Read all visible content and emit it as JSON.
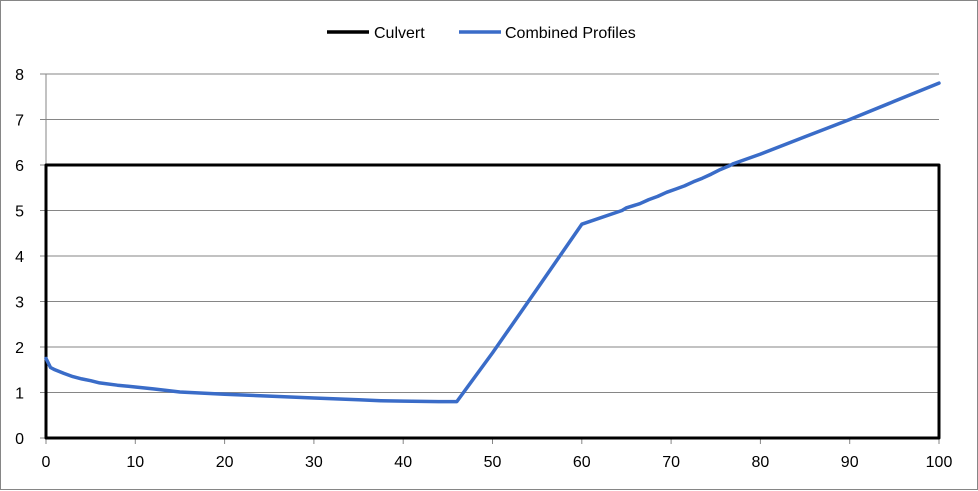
{
  "chart_data": {
    "type": "line",
    "title": "",
    "xlabel": "",
    "ylabel": "",
    "xlim": [
      0,
      100
    ],
    "ylim": [
      0,
      8
    ],
    "x_ticks": [
      "0",
      "10",
      "20",
      "30",
      "40",
      "50",
      "60",
      "70",
      "80",
      "90",
      "100"
    ],
    "y_ticks": [
      "0",
      "1",
      "2",
      "3",
      "4",
      "5",
      "6",
      "7",
      "8"
    ],
    "grid": "horizontal",
    "legend_position": "top",
    "series": [
      {
        "name": "Culvert",
        "color": "#000000",
        "x": [
          0,
          0,
          100,
          100,
          0
        ],
        "y": [
          0,
          6,
          6,
          0,
          0
        ]
      },
      {
        "name": "Combined Profiles",
        "color": "#3a6cc8",
        "x": [
          0,
          0.5,
          1,
          2,
          3,
          4,
          5,
          6,
          8,
          10,
          12,
          15,
          20,
          25,
          30,
          35,
          37.5,
          40,
          44,
          46,
          50,
          55,
          60,
          64.5,
          65,
          66.5,
          67.5,
          68.5,
          69.5,
          70.5,
          71.5,
          72.5,
          73.5,
          74.5,
          75.5,
          76.5,
          77,
          80,
          85,
          90,
          95,
          100
        ],
        "y": [
          1.75,
          1.55,
          1.5,
          1.42,
          1.35,
          1.3,
          1.26,
          1.21,
          1.16,
          1.12,
          1.08,
          1.01,
          0.96,
          0.92,
          0.88,
          0.84,
          0.82,
          0.81,
          0.8,
          0.8,
          1.87,
          3.28,
          4.7,
          5.0,
          5.06,
          5.15,
          5.24,
          5.31,
          5.4,
          5.47,
          5.54,
          5.63,
          5.71,
          5.8,
          5.9,
          5.98,
          6.03,
          6.24,
          6.62,
          7.0,
          7.4,
          7.8
        ]
      }
    ]
  }
}
